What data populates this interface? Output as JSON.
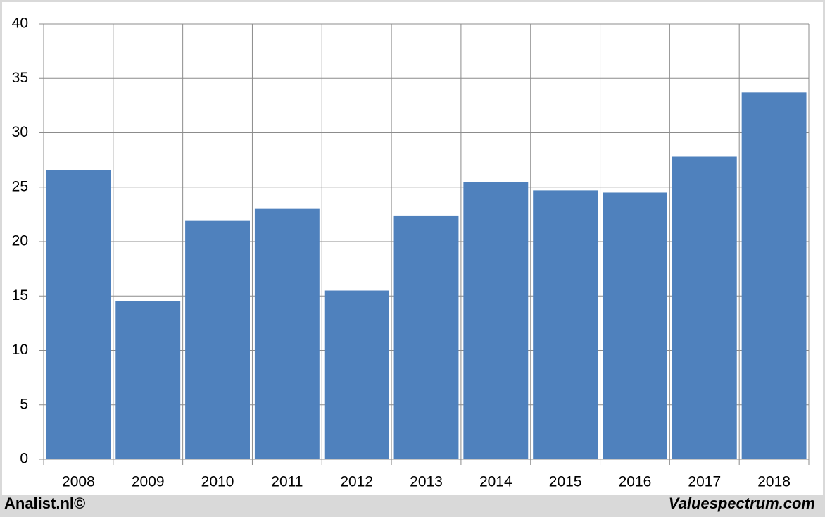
{
  "chart_data": {
    "type": "bar",
    "categories": [
      "2008",
      "2009",
      "2010",
      "2011",
      "2012",
      "2013",
      "2014",
      "2015",
      "2016",
      "2017",
      "2018"
    ],
    "values": [
      26.6,
      14.5,
      21.9,
      23.0,
      15.5,
      22.4,
      25.5,
      24.7,
      24.5,
      27.8,
      33.7
    ],
    "color": "#4f81bd",
    "ylim": [
      0,
      40
    ],
    "yticks": [
      0,
      5,
      10,
      15,
      20,
      25,
      30,
      35,
      40
    ],
    "grid": true,
    "footer_left": "Analist.nl©",
    "footer_right": "Valuespectrum.com"
  }
}
